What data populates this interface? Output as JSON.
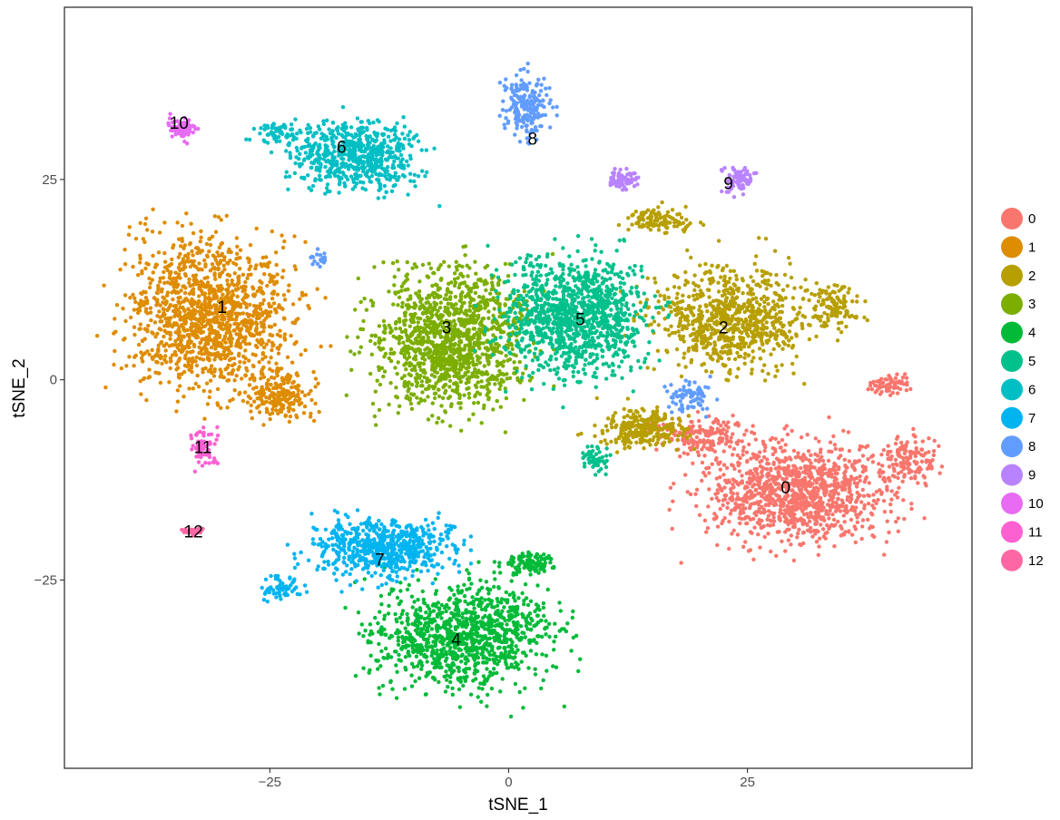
{
  "chart_data": {
    "type": "scatter",
    "title": "",
    "xlabel": "tSNE_1",
    "ylabel": "tSNE_2",
    "xlim": [
      -46.5,
      48.5
    ],
    "ylim": [
      -48.5,
      46.5
    ],
    "x_ticks": [
      -25,
      0,
      25
    ],
    "x_tick_labels": [
      "−25",
      "0",
      "25"
    ],
    "y_ticks": [
      -25,
      0,
      25
    ],
    "y_tick_labels": [
      "−25",
      "0",
      "25"
    ],
    "grid": false,
    "legend_position": "right",
    "series": [
      {
        "name": "0",
        "color": "#F8766D",
        "label_pos": [
          29,
          -13.5
        ],
        "approx_cells": 1500
      },
      {
        "name": "1",
        "color": "#DE8C00",
        "label_pos": [
          -30,
          9
        ],
        "approx_cells": 1500
      },
      {
        "name": "2",
        "color": "#B79F00",
        "label_pos": [
          22.5,
          6.5
        ],
        "approx_cells": 1300
      },
      {
        "name": "3",
        "color": "#7CAE00",
        "label_pos": [
          -6.5,
          6.5
        ],
        "approx_cells": 1300
      },
      {
        "name": "4",
        "color": "#00BA38",
        "label_pos": [
          -5.5,
          -32.5
        ],
        "approx_cells": 1200
      },
      {
        "name": "5",
        "color": "#00C08B",
        "label_pos": [
          7.5,
          7.5
        ],
        "approx_cells": 1200
      },
      {
        "name": "6",
        "color": "#00BFC4",
        "label_pos": [
          -17.5,
          29
        ],
        "approx_cells": 700
      },
      {
        "name": "7",
        "color": "#00B4F0",
        "label_pos": [
          -13.5,
          -22.5
        ],
        "approx_cells": 700
      },
      {
        "name": "8",
        "color": "#619CFF",
        "label_pos": [
          2.5,
          30
        ],
        "approx_cells": 300
      },
      {
        "name": "9",
        "color": "#B983FF",
        "label_pos": [
          23,
          24.5
        ],
        "approx_cells": 150
      },
      {
        "name": "10",
        "color": "#E76BF3",
        "label_pos": [
          -34.5,
          32
        ],
        "approx_cells": 90
      },
      {
        "name": "11",
        "color": "#FD61D1",
        "label_pos": [
          -32,
          -8.5
        ],
        "approx_cells": 70
      },
      {
        "name": "12",
        "color": "#FF67A4",
        "label_pos": [
          -33,
          -19
        ],
        "approx_cells": 35
      }
    ]
  }
}
